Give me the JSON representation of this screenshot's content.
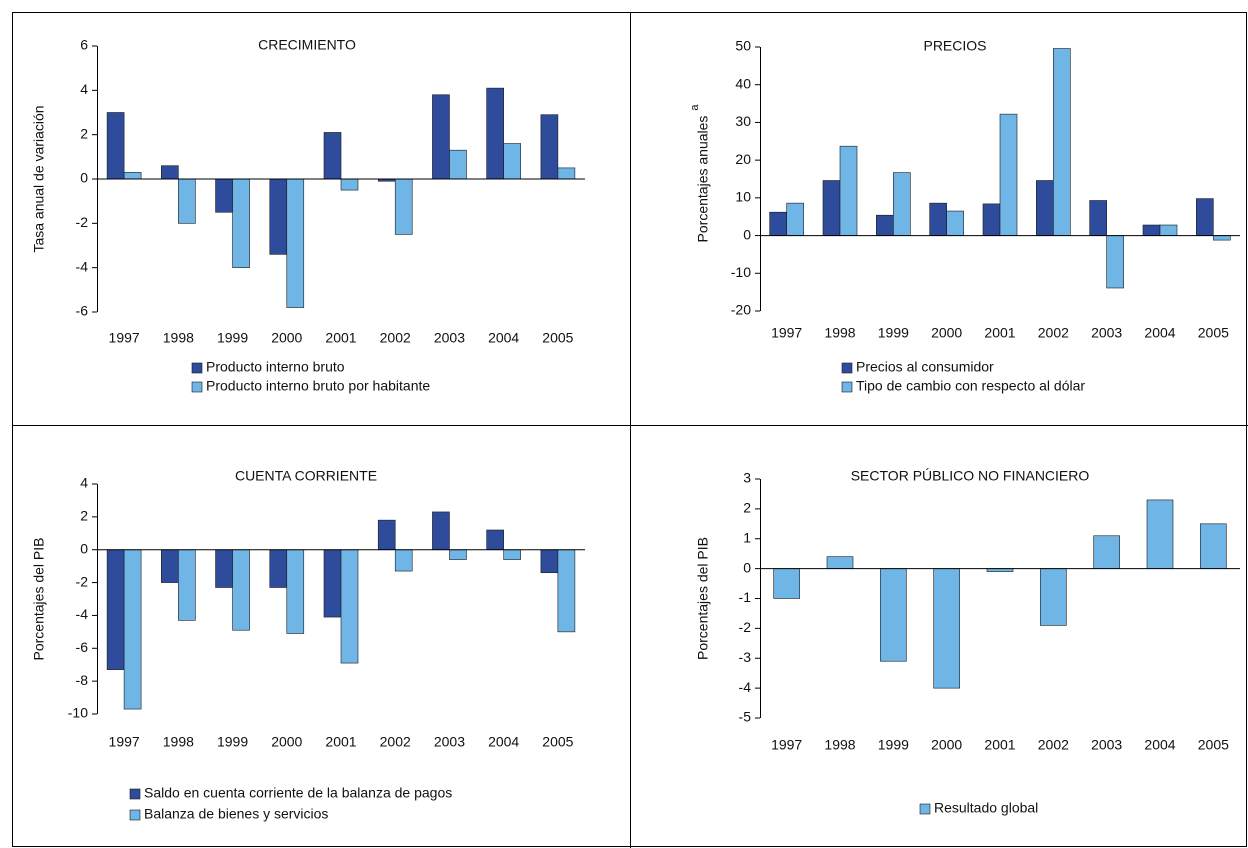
{
  "chart_data": [
    {
      "type": "bar",
      "title": "CRECIMIENTO",
      "y_label": "Tasa anual de variación",
      "categories": [
        "1997",
        "1998",
        "1999",
        "2000",
        "2001",
        "2002",
        "2003",
        "2004",
        "2005"
      ],
      "series": [
        {
          "name": "Producto interno bruto",
          "color": "#2f4c9c",
          "values": [
            3.0,
            0.6,
            -1.5,
            -3.4,
            2.1,
            -0.1,
            3.8,
            4.1,
            2.9
          ]
        },
        {
          "name": "Producto interno bruto por habitante",
          "color": "#6fb5e6",
          "values": [
            0.3,
            -2.0,
            -4.0,
            -5.8,
            -0.5,
            -2.5,
            1.3,
            1.6,
            0.5
          ]
        }
      ],
      "ylim": [
        -6,
        6
      ],
      "yticks": [
        -6,
        -4,
        -2,
        0,
        2,
        4,
        6
      ]
    },
    {
      "type": "bar",
      "title": "PRECIOS",
      "y_label": "Porcentajes anuales",
      "y_label_note": "a",
      "categories": [
        "1997",
        "1998",
        "1999",
        "2000",
        "2001",
        "2002",
        "2003",
        "2004",
        "2005"
      ],
      "series": [
        {
          "name": "Precios al consumidor",
          "color": "#2f4c9c",
          "values": [
            6.2,
            14.6,
            5.4,
            8.6,
            8.4,
            14.6,
            9.3,
            2.8,
            9.8
          ]
        },
        {
          "name": "Tipo de cambio con respecto al dólar",
          "color": "#6fb5e6",
          "values": [
            8.6,
            23.7,
            16.7,
            6.5,
            32.2,
            49.6,
            -13.9,
            2.8,
            -1.2
          ]
        }
      ],
      "ylim": [
        -20,
        50
      ],
      "yticks": [
        -20,
        -10,
        0,
        10,
        20,
        30,
        40,
        50
      ]
    },
    {
      "type": "bar",
      "title": "CUENTA CORRIENTE",
      "y_label": "Porcentajes del PIB",
      "categories": [
        "1997",
        "1998",
        "1999",
        "2000",
        "2001",
        "2002",
        "2003",
        "2004",
        "2005"
      ],
      "series": [
        {
          "name": "Saldo en cuenta corriente de la balanza de pagos",
          "color": "#2f4c9c",
          "values": [
            -7.3,
            -2.0,
            -2.3,
            -2.3,
            -4.1,
            1.8,
            2.3,
            1.2,
            -1.4
          ]
        },
        {
          "name": "Balanza de bienes y servicios",
          "color": "#6fb5e6",
          "values": [
            -9.7,
            -4.3,
            -4.9,
            -5.1,
            -6.9,
            -1.3,
            -0.6,
            -0.6,
            -5.0
          ]
        }
      ],
      "ylim": [
        -10,
        4
      ],
      "yticks": [
        -10,
        -8,
        -6,
        -4,
        -2,
        0,
        2,
        4
      ]
    },
    {
      "type": "bar",
      "title": "SECTOR PÚBLICO NO FINANCIERO",
      "y_label": "Porcentajes del PIB",
      "categories": [
        "1997",
        "1998",
        "1999",
        "2000",
        "2001",
        "2002",
        "2003",
        "2004",
        "2005"
      ],
      "series": [
        {
          "name": "Resultado global",
          "color": "#6fb5e6",
          "values": [
            -1.0,
            0.4,
            -3.1,
            -4.0,
            -0.1,
            -1.9,
            1.1,
            2.3,
            1.5
          ]
        }
      ],
      "ylim": [
        -5,
        3
      ],
      "yticks": [
        -5,
        -4,
        -3,
        -2,
        -1,
        0,
        1,
        2,
        3
      ]
    }
  ]
}
